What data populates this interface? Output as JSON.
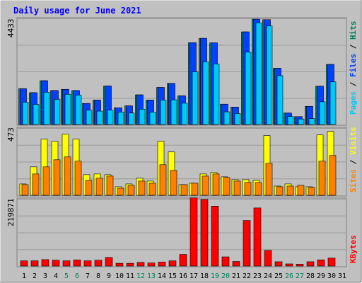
{
  "colors": {
    "background": "#ffffff",
    "frame": "#c0c0c0",
    "plot_bg": "#c0c0c0",
    "grid": "#9a9a9a",
    "title": "#0000ff",
    "hits": "#00805c",
    "files": "#0040ff",
    "pages": "#00c8f8",
    "visits": "#ffff00",
    "sites": "#ff8000",
    "kbytes": "#ff0000",
    "weekend_label": "#00805c",
    "weekday_label": "#000000"
  },
  "chart_data": {
    "type": "bar",
    "title": "Daily usage for June 2021",
    "days": [
      "1",
      "2",
      "3",
      "4",
      "5",
      "6",
      "7",
      "8",
      "9",
      "10",
      "11",
      "12",
      "13",
      "14",
      "15",
      "16",
      "17",
      "18",
      "19",
      "20",
      "21",
      "22",
      "23",
      "24",
      "25",
      "26",
      "27",
      "28",
      "29",
      "30",
      "31"
    ],
    "weekend_days": [
      "5",
      "6",
      "12",
      "13",
      "19",
      "20",
      "26",
      "27"
    ],
    "panels": [
      {
        "name": "hits-files-pages",
        "ymax": 4433,
        "ymax_label": "4433",
        "legend": [
          {
            "text": "Pages",
            "color_key": "pages"
          },
          {
            "text": " / ",
            "color_key": "weekday_label"
          },
          {
            "text": "Files",
            "color_key": "files"
          },
          {
            "text": " / ",
            "color_key": "weekday_label"
          },
          {
            "text": "Hits",
            "color_key": "hits"
          }
        ],
        "series": [
          {
            "name": "Hits",
            "color_key": "hits",
            "values": [
              1500,
              1330,
              1830,
              1420,
              1470,
              1420,
              880,
              1020,
              1610,
              700,
              780,
              1240,
              1020,
              1550,
              1720,
              1200,
              3420,
              3600,
              3410,
              850,
              730,
              3870,
              4400,
              4380,
              2350,
              480,
              330,
              760,
              1600,
              2510,
              0
            ]
          },
          {
            "name": "Files",
            "color_key": "files",
            "values": [
              1500,
              1330,
              1830,
              1420,
              1470,
              1420,
              880,
              1020,
              1610,
              700,
              780,
              1240,
              1020,
              1550,
              1720,
              1200,
              3420,
              3600,
              3410,
              850,
              730,
              3870,
              4400,
              4380,
              2350,
              480,
              330,
              760,
              1600,
              2510,
              0
            ]
          },
          {
            "name": "Pages",
            "color_key": "pages",
            "values": [
              930,
              840,
              1350,
              1050,
              1260,
              1230,
              600,
              560,
              600,
              520,
              480,
              640,
              520,
              1020,
              1030,
              890,
              2200,
              2620,
              2530,
              530,
              460,
              3020,
              4250,
              4120,
              2040,
              340,
              230,
              250,
              950,
              1780,
              0
            ]
          }
        ]
      },
      {
        "name": "visits-sites",
        "ymax": 473,
        "ymax_label": "473",
        "legend": [
          {
            "text": "Sites",
            "color_key": "sites"
          },
          {
            "text": " / ",
            "color_key": "weekday_label"
          },
          {
            "text": "Visits",
            "color_key": "visits"
          }
        ],
        "series": [
          {
            "name": "Visits",
            "color_key": "visits",
            "values": [
              80,
              200,
              395,
              380,
              430,
              395,
              145,
              150,
              145,
              60,
              80,
              120,
              100,
              380,
              305,
              75,
              85,
              150,
              160,
              130,
              110,
              110,
              105,
              420,
              65,
              80,
              60,
              60,
              425,
              450,
              0
            ]
          },
          {
            "name": "Sites",
            "color_key": "sites",
            "values": [
              75,
              150,
              200,
              250,
              270,
              240,
              105,
              120,
              135,
              50,
              70,
              100,
              85,
              215,
              175,
              75,
              85,
              135,
              150,
              125,
              100,
              90,
              90,
              225,
              60,
              65,
              70,
              55,
              240,
              280,
              0
            ]
          }
        ]
      },
      {
        "name": "kbytes",
        "ymax": 219871,
        "ymax_label": "219871",
        "legend": [
          {
            "text": "KBytes",
            "color_key": "kbytes"
          }
        ],
        "series": [
          {
            "name": "KBytes",
            "color_key": "kbytes",
            "values": [
              17000,
              17000,
              21000,
              19000,
              17000,
              20000,
              17000,
              19000,
              28000,
              9000,
              9000,
              12000,
              10000,
              13000,
              17000,
              38000,
              223000,
              218000,
              196000,
              30000,
              15000,
              149000,
              190000,
              51000,
              14000,
              7000,
              6000,
              14000,
              20000,
              26000,
              0
            ]
          }
        ]
      }
    ]
  }
}
